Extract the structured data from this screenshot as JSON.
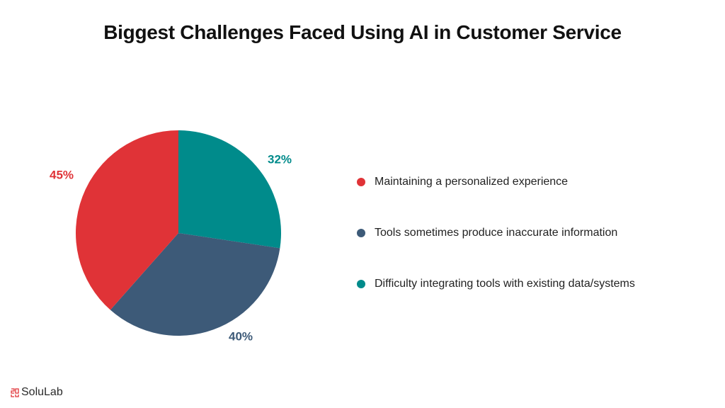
{
  "title": "Biggest Challenges Faced Using AI in Customer Service",
  "chart_data": {
    "type": "pie",
    "slices": [
      {
        "label": "Maintaining a personalized experience",
        "value": 45,
        "value_label": "45%",
        "color": "#e03337"
      },
      {
        "label": "Tools sometimes produce inaccurate information",
        "value": 40,
        "value_label": "40%",
        "color": "#3d5a78"
      },
      {
        "label": "Difficulty integrating tools with existing data/systems",
        "value": 32,
        "value_label": "32%",
        "color": "#008b8b"
      }
    ],
    "legend_position": "right"
  },
  "brand": {
    "name": "SoluLab",
    "color": "#e03337"
  }
}
